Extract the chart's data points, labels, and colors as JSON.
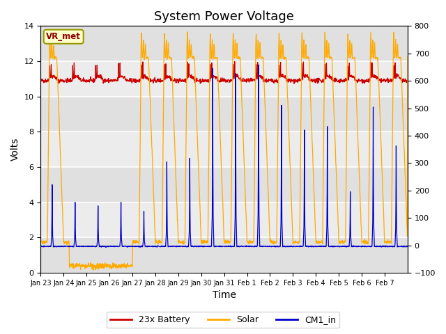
{
  "title": "System Power Voltage",
  "xlabel": "Time",
  "ylabel": "Volts",
  "ylim_left": [
    0,
    14
  ],
  "ylim_right": [
    -100,
    800
  ],
  "yticks_left": [
    0,
    2,
    4,
    6,
    8,
    10,
    12,
    14
  ],
  "yticks_right": [
    -100,
    0,
    100,
    200,
    300,
    400,
    500,
    600,
    700,
    800
  ],
  "xtick_labels": [
    "Jan 23",
    "Jan 24",
    "Jan 25",
    "Jan 26",
    "Jan 27",
    "Jan 28",
    "Jan 29",
    "Jan 30",
    "Jan 31",
    "Feb 1",
    "Feb 2",
    "Feb 3",
    "Feb 4",
    "Feb 5",
    "Feb 6",
    "Feb 7"
  ],
  "annotation_text": "VR_met",
  "annotation_color": "#8B0000",
  "bg_color": "#ffffff",
  "plot_bg_color": "#f0f0f0",
  "grid_color": "#ffffff",
  "line_battery_color": "#cc0000",
  "line_solar_color": "#ffaa00",
  "line_cm1_color": "#0000cc",
  "legend_labels": [
    "23x Battery",
    "Solar",
    "CM1_in"
  ],
  "title_fontsize": 13,
  "axis_fontsize": 10,
  "tick_fontsize": 8,
  "band_colors": [
    "#e0e0e0",
    "#ececec"
  ],
  "annotation_bg": "#ffffcc",
  "annotation_edge": "#999900"
}
